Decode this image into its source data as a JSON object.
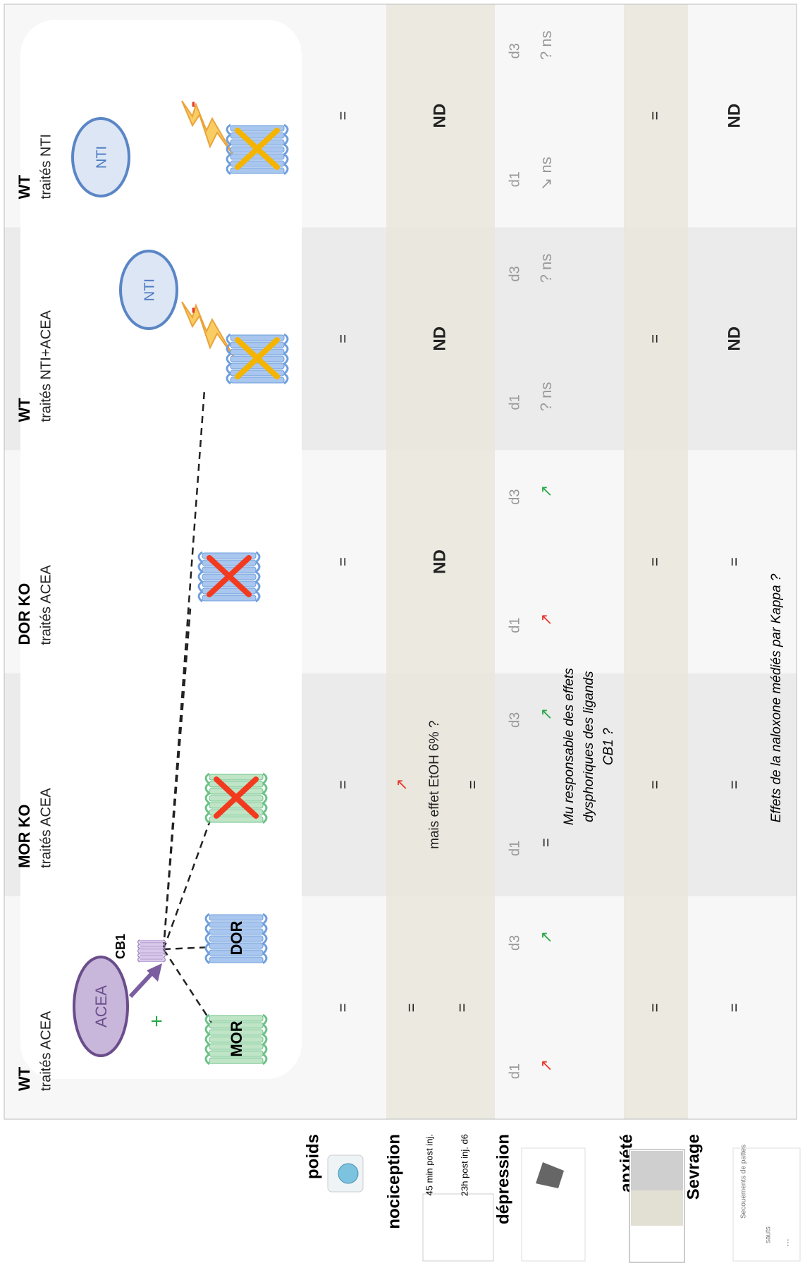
{
  "columns": [
    {
      "title": "WT",
      "subtitle": "traités ACEA"
    },
    {
      "title": "MOR KO",
      "subtitle": "traités ACEA"
    },
    {
      "title": "DOR KO",
      "subtitle": "traités ACEA"
    },
    {
      "title": "WT",
      "subtitle": "traités NTI+ACEA"
    },
    {
      "title": "WT",
      "subtitle": "traités NTI"
    }
  ],
  "rows": [
    {
      "label": "poids"
    },
    {
      "label": "nociception",
      "sublabels": [
        "45 min post inj.",
        "23h post inj. d6"
      ]
    },
    {
      "label": "dépression"
    },
    {
      "label": "anxiété"
    },
    {
      "label": "Sevrage",
      "icon_texts": [
        "sauts",
        "Secouements de pattes",
        "..."
      ]
    }
  ],
  "diagram": {
    "acea": "ACEA",
    "cb1": "CB1",
    "plus": "+",
    "mor": "MOR",
    "dor": "DOR",
    "nti": [
      "NTI",
      "NTI"
    ],
    "minus": [
      "-",
      "-"
    ]
  },
  "poids": [
    "=",
    "=",
    "=",
    "=",
    "="
  ],
  "nociception": [
    [
      "=",
      "="
    ],
    [
      {
        "text": "↗",
        "color": "#e5392b"
      },
      "mais effet EtOH 6% ?",
      "="
    ],
    [
      "ND"
    ],
    [
      "ND"
    ],
    [
      "ND"
    ]
  ],
  "depression": [
    {
      "days": [
        {
          "day": "d1",
          "result": {
            "text": "↗",
            "color": "#e5392b"
          }
        },
        {
          "day": "d3",
          "result": {
            "text": "↗",
            "color": "#2aa84a"
          }
        }
      ]
    },
    {
      "days": [
        {
          "day": "d1",
          "result": "="
        },
        {
          "day": "d3",
          "result": {
            "text": "↗",
            "color": "#2aa84a"
          }
        }
      ],
      "note": [
        "Mu responsable des effets",
        "dysphoriques des ligands",
        "CB1 ?"
      ]
    },
    {
      "days": [
        {
          "day": "d1",
          "result": {
            "text": "↗",
            "color": "#e5392b"
          }
        },
        {
          "day": "d3",
          "result": {
            "text": "↗",
            "color": "#2aa84a"
          }
        }
      ]
    },
    {
      "days": [
        {
          "day": "d1",
          "result": "? ns"
        },
        {
          "day": "d3",
          "result": "? ns"
        }
      ]
    },
    {
      "days": [
        {
          "day": "d1",
          "result": "↘ ns"
        },
        {
          "day": "d3",
          "result": "? ns"
        }
      ]
    }
  ],
  "anxiete": [
    "=",
    "=",
    "=",
    "=",
    "="
  ],
  "sevrage": [
    "=",
    "=",
    "=",
    "ND",
    "ND"
  ],
  "sevrage_note": "Effets de la naloxone médiés par Kappa ?"
}
